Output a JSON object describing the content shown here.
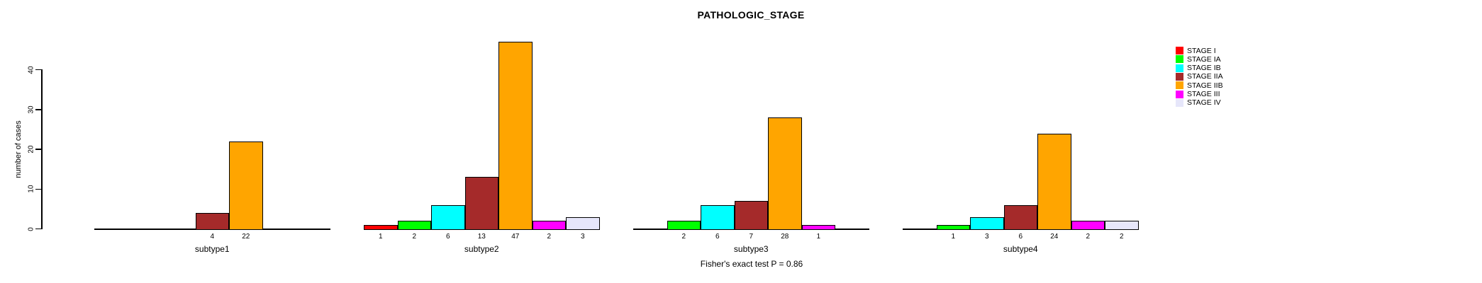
{
  "title": "PATHOLOGIC_STAGE",
  "caption": "Fisher's exact test P = 0.86",
  "y_axis": {
    "label": "number of cases",
    "ticks": [
      0,
      10,
      20,
      30,
      40
    ]
  },
  "legend": {
    "items": [
      {
        "label": "STAGE I",
        "color": "#FF0000"
      },
      {
        "label": "STAGE IA",
        "color": "#00FF00"
      },
      {
        "label": "STAGE IB",
        "color": "#00FFFF"
      },
      {
        "label": "STAGE IIA",
        "color": "#A52A2A"
      },
      {
        "label": "STAGE IIB",
        "color": "#FFA500"
      },
      {
        "label": "STAGE III",
        "color": "#FF00FF"
      },
      {
        "label": "STAGE IV",
        "color": "#E6E6FA"
      }
    ]
  },
  "chart_data": {
    "type": "bar",
    "title": "PATHOLOGIC_STAGE",
    "xlabel": "",
    "ylabel": "number of cases",
    "ylim": [
      0,
      40
    ],
    "grid": false,
    "legend_position": "right",
    "annotation": "Fisher's exact test P = 0.86",
    "categories": [
      "subtype1",
      "subtype2",
      "subtype3",
      "subtype4"
    ],
    "series": [
      {
        "name": "STAGE I",
        "color": "#FF0000",
        "values": [
          0,
          1,
          0,
          0
        ]
      },
      {
        "name": "STAGE IA",
        "color": "#00FF00",
        "values": [
          0,
          2,
          2,
          1
        ]
      },
      {
        "name": "STAGE IB",
        "color": "#00FFFF",
        "values": [
          0,
          6,
          6,
          3
        ]
      },
      {
        "name": "STAGE IIA",
        "color": "#A52A2A",
        "values": [
          4,
          13,
          7,
          6
        ]
      },
      {
        "name": "STAGE IIB",
        "color": "#FFA500",
        "values": [
          22,
          47,
          28,
          24
        ]
      },
      {
        "name": "STAGE III",
        "color": "#FF00FF",
        "values": [
          0,
          2,
          1,
          2
        ]
      },
      {
        "name": "STAGE IV",
        "color": "#E6E6FA",
        "values": [
          0,
          3,
          0,
          2
        ]
      }
    ],
    "bar_value_labels_shown_only_when_nonzero": true
  }
}
